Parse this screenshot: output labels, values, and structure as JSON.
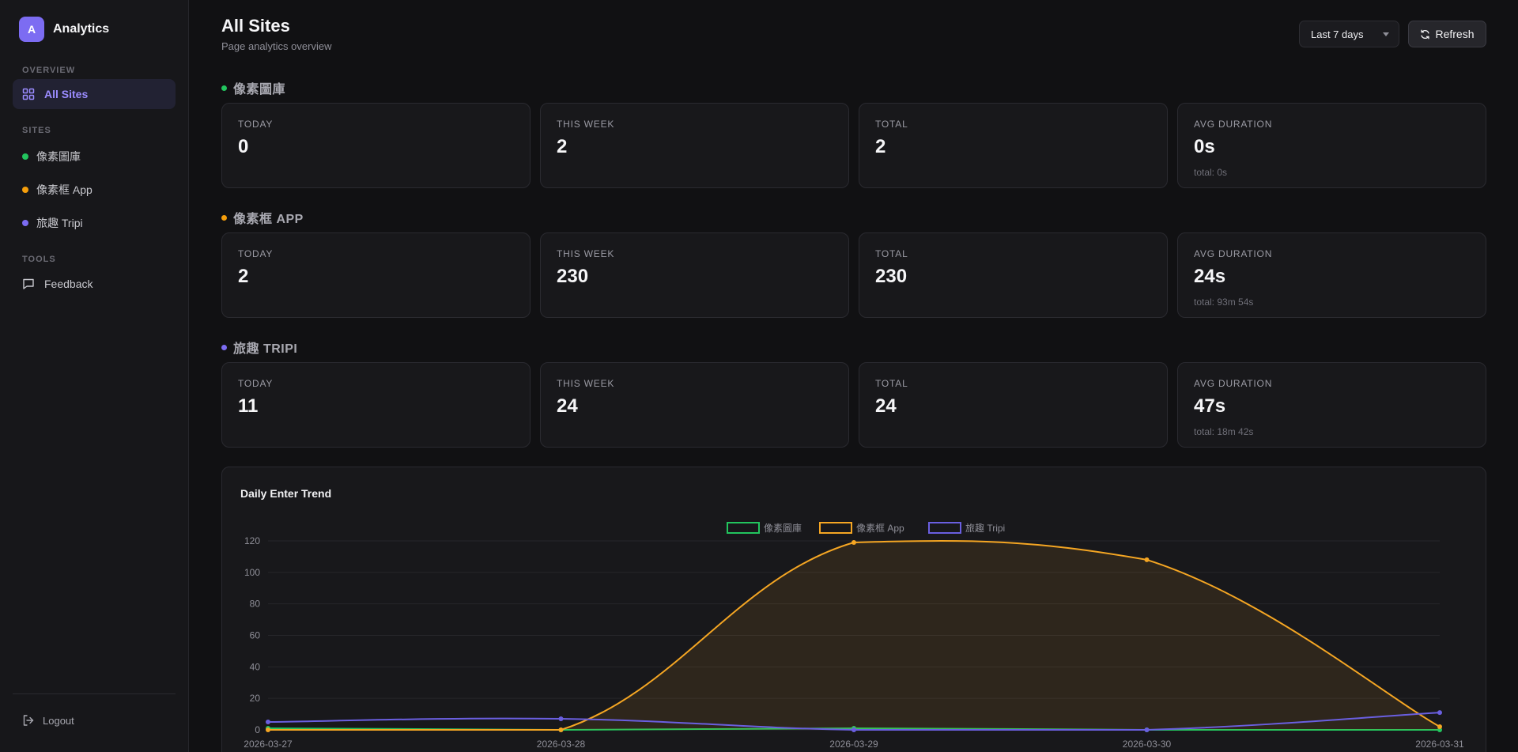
{
  "app": {
    "logo_letter": "A",
    "name": "Analytics"
  },
  "sidebar": {
    "overview_label": "OVERVIEW",
    "all_sites_label": "All Sites",
    "sites_label": "SITES",
    "sites": [
      {
        "name": "像素圖庫",
        "color": "#22c55e"
      },
      {
        "name": "像素框 App",
        "color": "#f59e0b"
      },
      {
        "name": "旅趣 Tripi",
        "color": "#7c6cf2"
      }
    ],
    "tools_label": "TOOLS",
    "feedback_label": "Feedback",
    "logout_label": "Logout"
  },
  "header": {
    "title": "All Sites",
    "subtitle": "Page analytics overview",
    "range_value": "Last 7 days",
    "refresh_label": "Refresh"
  },
  "sections": [
    {
      "name": "像素圖庫",
      "color": "#22c55e",
      "stats": {
        "today_label": "TODAY",
        "today": "0",
        "week_label": "THIS WEEK",
        "week": "2",
        "total_label": "TOTAL",
        "total": "2",
        "avg_label": "AVG DURATION",
        "avg": "0s",
        "avg_total": "total: 0s"
      }
    },
    {
      "name": "像素框 APP",
      "color": "#f59e0b",
      "stats": {
        "today_label": "TODAY",
        "today": "2",
        "week_label": "THIS WEEK",
        "week": "230",
        "total_label": "TOTAL",
        "total": "230",
        "avg_label": "AVG DURATION",
        "avg": "24s",
        "avg_total": "total: 93m 54s"
      }
    },
    {
      "name": "旅趣 TRIPI",
      "color": "#7c6cf2",
      "stats": {
        "today_label": "TODAY",
        "today": "11",
        "week_label": "THIS WEEK",
        "week": "24",
        "total_label": "TOTAL",
        "total": "24",
        "avg_label": "AVG DURATION",
        "avg": "47s",
        "avg_total": "total: 18m 42s"
      }
    }
  ],
  "chart": {
    "title": "Daily Enter Trend"
  },
  "chart_data": {
    "type": "line",
    "title": "Daily Enter Trend",
    "x": [
      "2026-03-27",
      "2026-03-28",
      "2026-03-29",
      "2026-03-30",
      "2026-03-31"
    ],
    "ylim": [
      0,
      120
    ],
    "yticks": [
      0,
      20,
      40,
      60,
      80,
      100,
      120
    ],
    "grid": true,
    "legend": "top-center",
    "series": [
      {
        "name": "像素圖庫",
        "color": "#22c55e",
        "values": [
          1,
          0,
          1,
          0,
          0
        ],
        "fill": false
      },
      {
        "name": "像素框 App",
        "color": "#f5a623",
        "values": [
          0,
          0,
          119,
          108,
          2
        ],
        "fill": true
      },
      {
        "name": "旅趣 Tripi",
        "color": "#6a5fe0",
        "values": [
          5,
          7,
          0,
          0,
          11
        ],
        "fill": false
      }
    ]
  }
}
